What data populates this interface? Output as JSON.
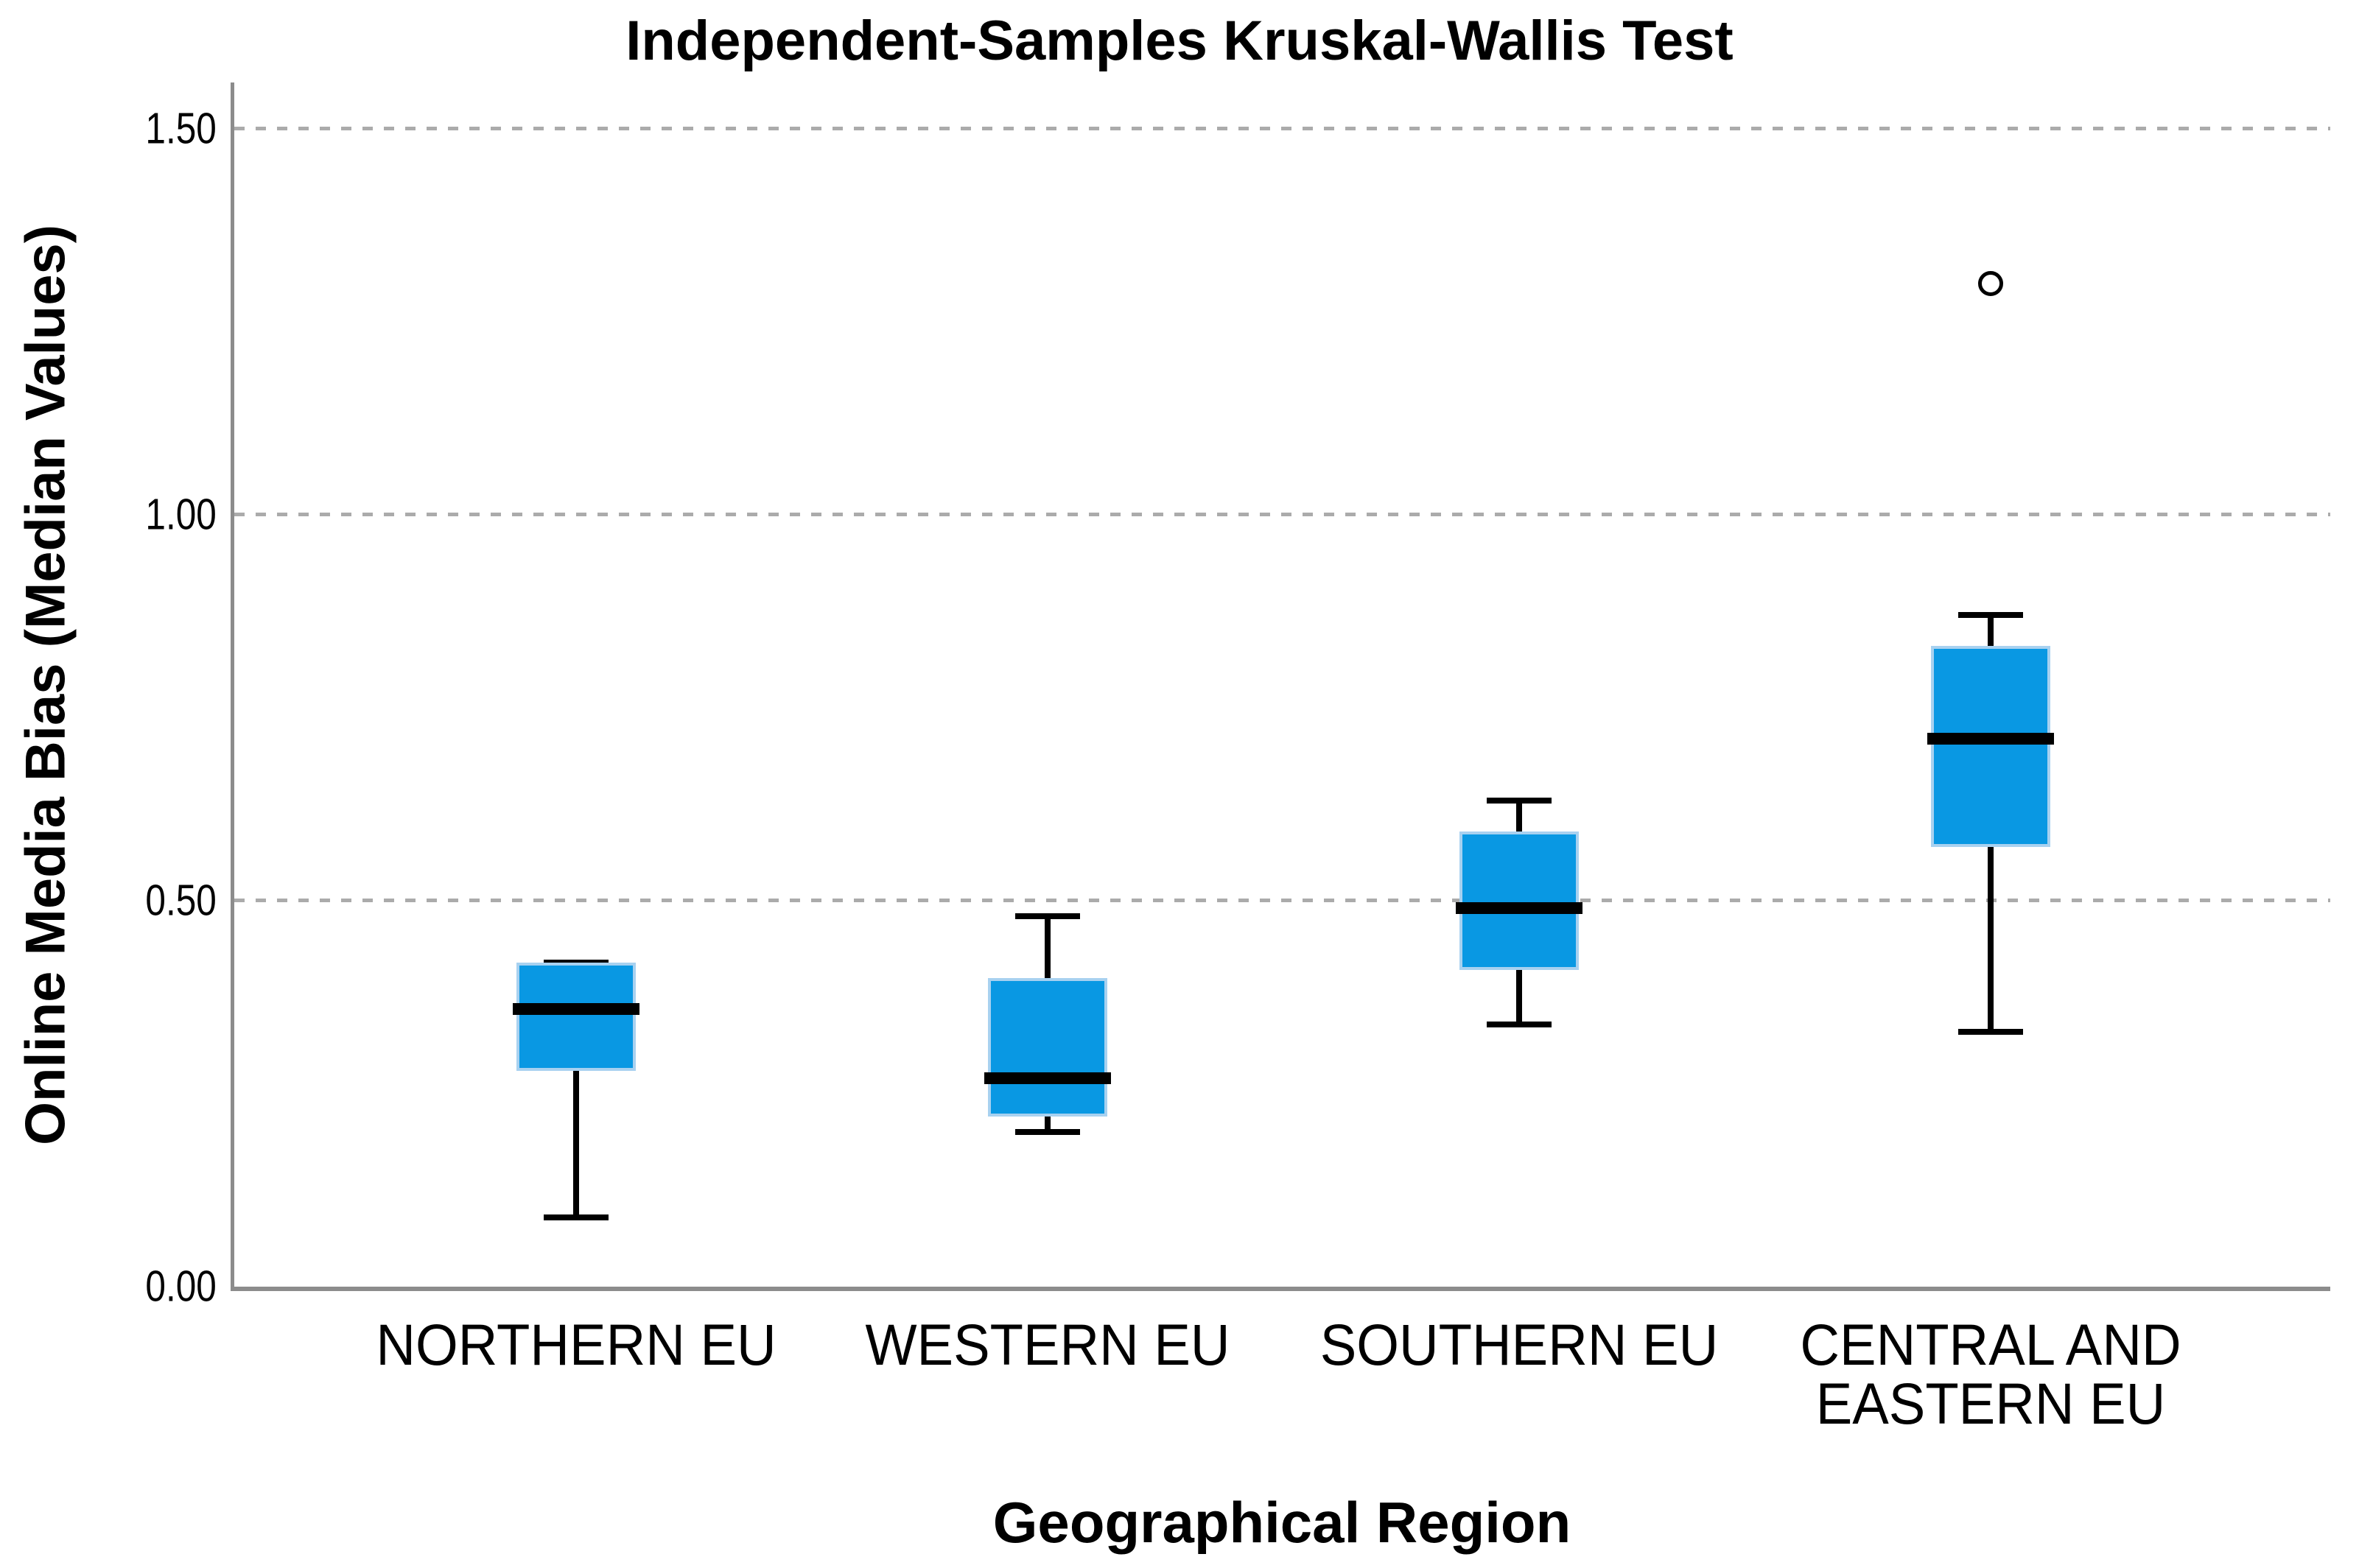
{
  "chart_data": {
    "type": "boxplot",
    "title": "Independent-Samples Kruskal-Wallis Test",
    "xlabel": "Geographical Region",
    "ylabel": "Online Media Bias (Median Values)",
    "ylim": [
      0,
      1.56
    ],
    "grid": "dashed horizontal",
    "gridlines": [
      0.5,
      1.0,
      1.5
    ],
    "yticks": [
      {
        "value": 0.0,
        "label": "0.00"
      },
      {
        "value": 0.5,
        "label": "0.50"
      },
      {
        "value": 1.0,
        "label": "1.00"
      },
      {
        "value": 1.5,
        "label": "1.50"
      }
    ],
    "x_centers_pct": [
      16.3,
      38.8,
      61.3,
      83.8
    ],
    "categories": [
      {
        "label_lines": [
          "NORTHERN EU"
        ],
        "min": 0.09,
        "q1": 0.28,
        "median": 0.36,
        "q3": 0.42,
        "max": 0.42,
        "outliers": []
      },
      {
        "label_lines": [
          "WESTERN EU"
        ],
        "min": 0.2,
        "q1": 0.22,
        "median": 0.27,
        "q3": 0.4,
        "max": 0.48,
        "outliers": []
      },
      {
        "label_lines": [
          "SOUTHERN EU"
        ],
        "min": 0.34,
        "q1": 0.41,
        "median": 0.49,
        "q3": 0.59,
        "max": 0.63,
        "outliers": []
      },
      {
        "label_lines": [
          "CENTRAL AND",
          "EASTERN EU"
        ],
        "min": 0.33,
        "q1": 0.57,
        "median": 0.71,
        "q3": 0.83,
        "max": 0.87,
        "outliers": [
          1.3
        ]
      }
    ],
    "colors": {
      "background": "#FFFFFF",
      "box_fill": "#0998E3",
      "box_border": "#A8D1F0",
      "median": "#000000",
      "whisker": "#000000",
      "axis": "#8C8C8C",
      "grid": "#ABABAB",
      "outlier_stroke": "#000000",
      "text": "#000000"
    }
  }
}
